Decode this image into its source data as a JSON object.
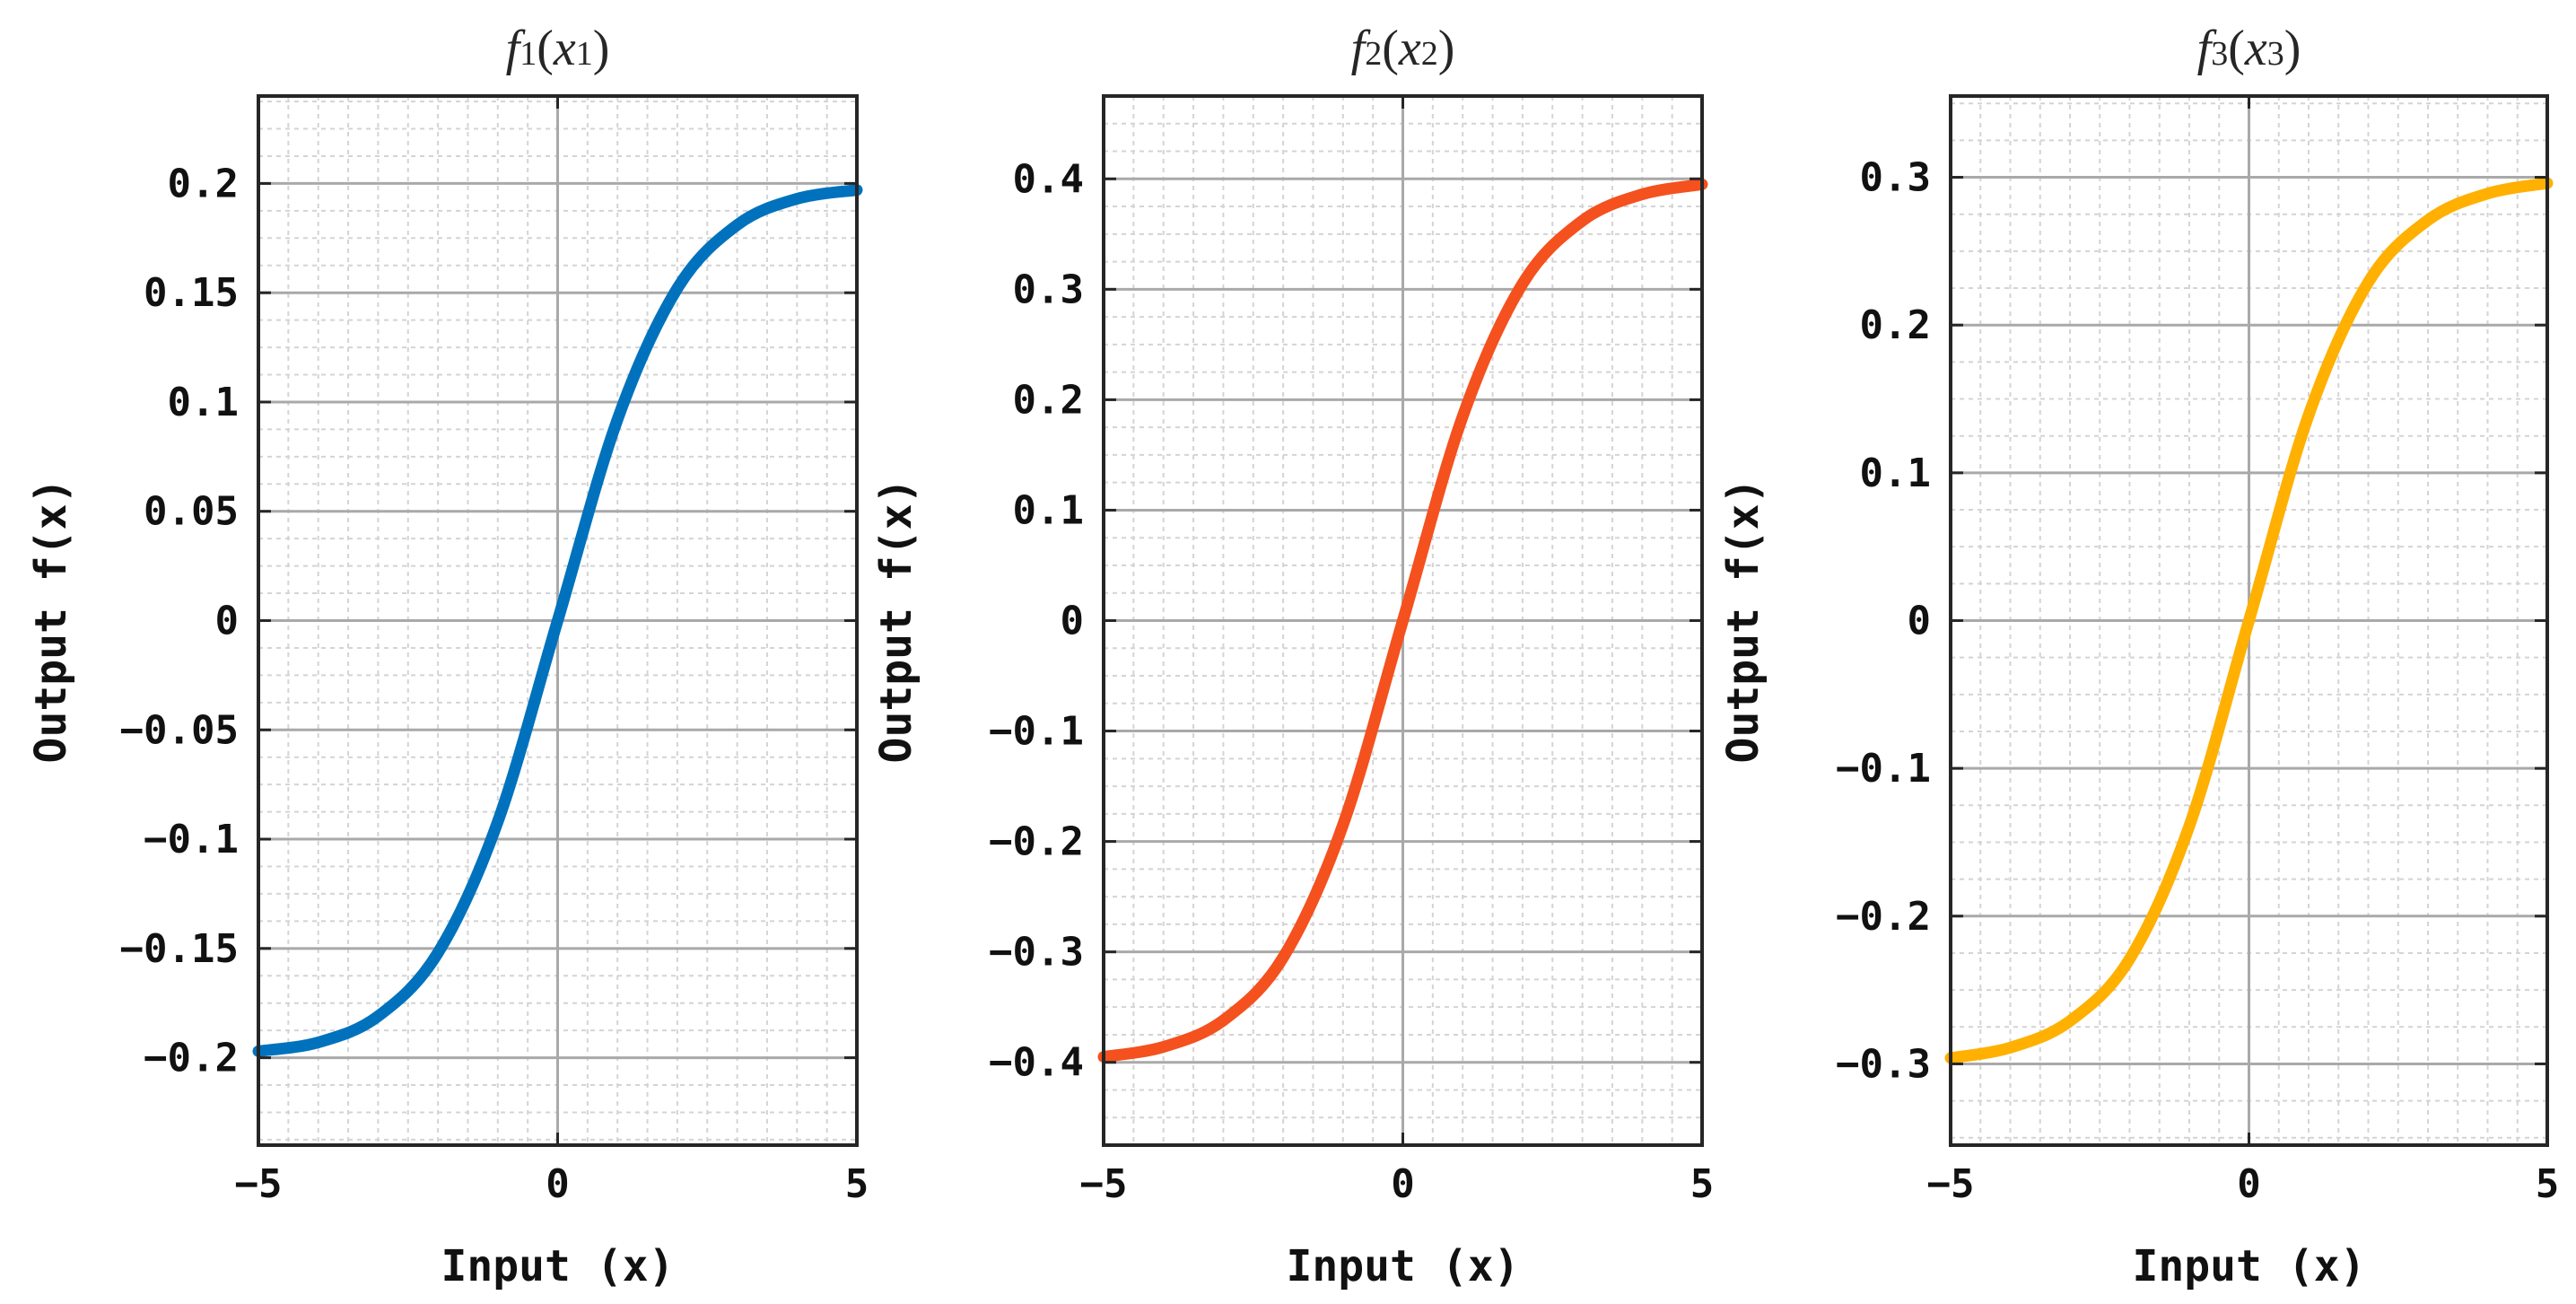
{
  "chart_data": [
    {
      "type": "line",
      "title": "f1(x1)",
      "title_parts": {
        "fn": "f",
        "fn_sub": "1",
        "arg": "x",
        "arg_sub": "1"
      },
      "xlabel": "Input (x)",
      "ylabel": "Output f(x)",
      "xlim": [
        -5,
        5
      ],
      "ylim": [
        -0.24,
        0.24
      ],
      "xticks": [
        -5,
        0,
        5
      ],
      "xtick_labels": [
        "−5",
        "0",
        "5"
      ],
      "yticks": [
        -0.2,
        -0.15,
        -0.1,
        -0.05,
        0,
        0.05,
        0.1,
        0.15,
        0.2
      ],
      "ytick_labels": [
        "−0.2",
        "−0.15",
        "−0.1",
        "−0.05",
        "0",
        "0.05",
        "0.1",
        "0.15",
        "0.2"
      ],
      "grid": true,
      "minor_grid": true,
      "series": [
        {
          "name": "f1",
          "color": "#0072BD",
          "x": [
            -5,
            -4,
            -3,
            -2,
            -1,
            0,
            1,
            2,
            3,
            4,
            5
          ],
          "values": [
            -0.197,
            -0.193,
            -0.181,
            -0.152,
            -0.092,
            0,
            0.092,
            0.152,
            0.181,
            0.193,
            0.197
          ]
        }
      ]
    },
    {
      "type": "line",
      "title": "f2(x2)",
      "title_parts": {
        "fn": "f",
        "fn_sub": "2",
        "arg": "x",
        "arg_sub": "2"
      },
      "xlabel": "Input (x)",
      "ylabel": "Output f(x)",
      "xlim": [
        -5,
        5
      ],
      "ylim": [
        -0.475,
        0.475
      ],
      "xticks": [
        -5,
        0,
        5
      ],
      "xtick_labels": [
        "−5",
        "0",
        "5"
      ],
      "yticks": [
        -0.4,
        -0.3,
        -0.2,
        -0.1,
        0,
        0.1,
        0.2,
        0.3,
        0.4
      ],
      "ytick_labels": [
        "−0.4",
        "−0.3",
        "−0.2",
        "−0.1",
        "0",
        "0.1",
        "0.2",
        "0.3",
        "0.4"
      ],
      "grid": true,
      "minor_grid": true,
      "series": [
        {
          "name": "f2",
          "color": "#F4511E",
          "x": [
            -5,
            -4,
            -3,
            -2,
            -1,
            0,
            1,
            2,
            3,
            4,
            5
          ],
          "values": [
            -0.395,
            -0.386,
            -0.362,
            -0.305,
            -0.185,
            0,
            0.185,
            0.305,
            0.362,
            0.386,
            0.395
          ]
        }
      ]
    },
    {
      "type": "line",
      "title": "f3(x3)",
      "title_parts": {
        "fn": "f",
        "fn_sub": "3",
        "arg": "x",
        "arg_sub": "3"
      },
      "xlabel": "Input (x)",
      "ylabel": "Output f(x)",
      "xlim": [
        -5,
        5
      ],
      "ylim": [
        -0.355,
        0.355
      ],
      "xticks": [
        -5,
        0,
        5
      ],
      "xtick_labels": [
        "−5",
        "0",
        "5"
      ],
      "yticks": [
        -0.3,
        -0.2,
        -0.1,
        0,
        0.1,
        0.2,
        0.3
      ],
      "ytick_labels": [
        "−0.3",
        "−0.2",
        "−0.1",
        "0",
        "0.1",
        "0.2",
        "0.3"
      ],
      "grid": true,
      "minor_grid": true,
      "series": [
        {
          "name": "f3",
          "color": "#FFB000",
          "x": [
            -5,
            -4,
            -3,
            -2,
            -1,
            0,
            1,
            2,
            3,
            4,
            5
          ],
          "values": [
            -0.296,
            -0.289,
            -0.271,
            -0.229,
            -0.139,
            0,
            0.139,
            0.229,
            0.271,
            0.289,
            0.296
          ]
        }
      ]
    }
  ]
}
